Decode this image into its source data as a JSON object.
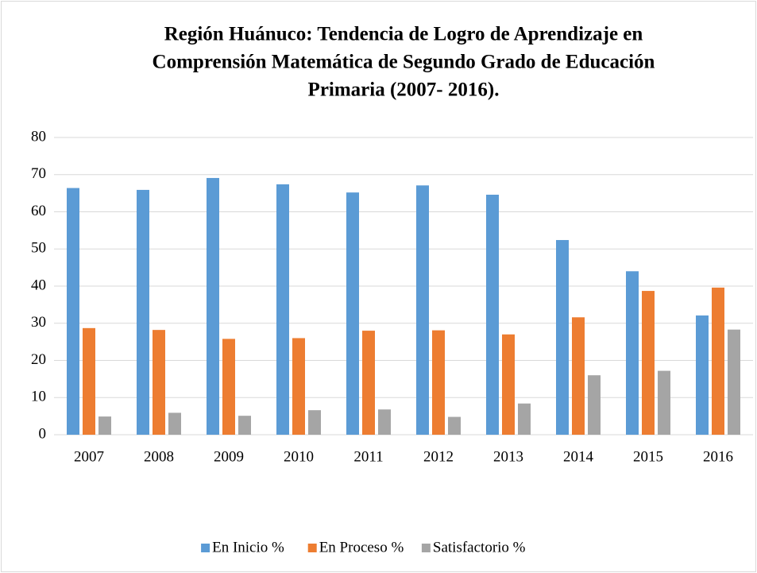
{
  "chart_data": {
    "type": "bar",
    "title_lines": [
      "Región Huánuco: Tendencia de Logro de Aprendizaje en",
      "Comprensión Matemática de Segundo Grado de Educación",
      "Primaria (2007- 2016)."
    ],
    "categories": [
      "2007",
      "2008",
      "2009",
      "2010",
      "2011",
      "2012",
      "2013",
      "2014",
      "2015",
      "2016"
    ],
    "series": [
      {
        "name": "En Inicio %",
        "color": "#5b9bd5",
        "values": [
          66.4,
          65.9,
          69.1,
          67.4,
          65.2,
          67.1,
          64.6,
          52.4,
          44.0,
          32.1
        ]
      },
      {
        "name": "En Proceso %",
        "color": "#ed7d31",
        "values": [
          28.7,
          28.2,
          25.8,
          26.0,
          28.0,
          28.1,
          27.0,
          31.6,
          38.7,
          39.6
        ]
      },
      {
        "name": "Satisfactorio %",
        "color": "#a5a5a5",
        "values": [
          4.9,
          5.9,
          5.1,
          6.6,
          6.8,
          4.8,
          8.4,
          16.0,
          17.2,
          28.3
        ]
      }
    ],
    "ylim": [
      0,
      80
    ],
    "yticks": [
      0,
      10,
      20,
      30,
      40,
      50,
      60,
      70,
      80
    ],
    "grid": true,
    "legend": "bottom"
  }
}
